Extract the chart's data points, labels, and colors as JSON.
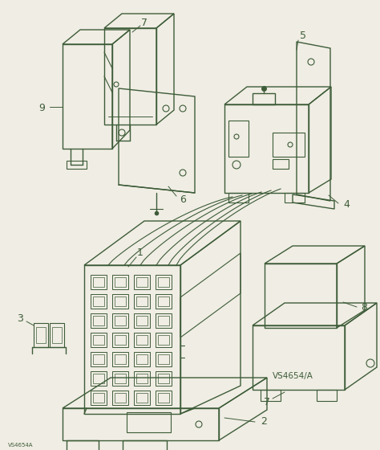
{
  "bg_color": "#f0ede4",
  "line_color": "#3d5c38",
  "lw": 1.0,
  "watermark": "VS4654/A",
  "fig_w": 4.74,
  "fig_h": 5.6,
  "dpi": 100
}
